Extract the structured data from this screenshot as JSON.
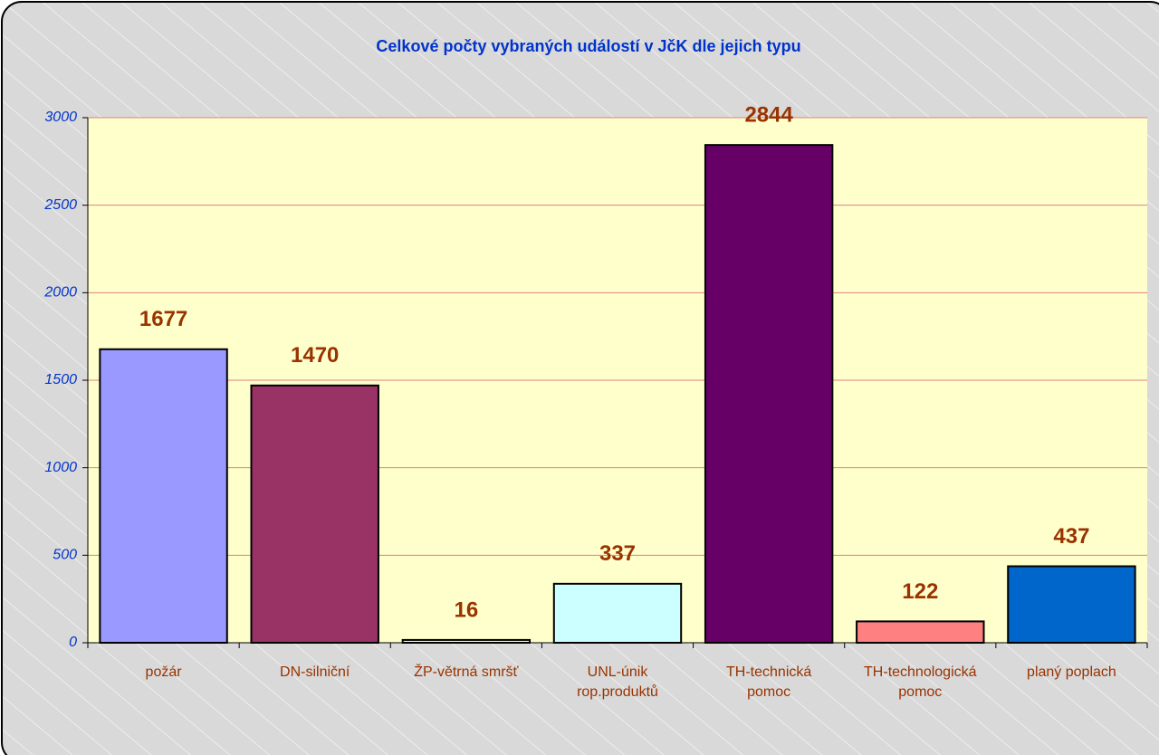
{
  "chart_data": {
    "type": "bar",
    "title": "Celkové počty vybraných událostí v JčK dle jejich typu",
    "categories": [
      "požár",
      "DN-silniční",
      "ŽP-větrná smršť",
      "UNL-únik rop.produktů",
      "TH-technická pomoc",
      "TH-technologická pomoc",
      "planý poplach"
    ],
    "values": [
      1677,
      1470,
      16,
      337,
      2844,
      122,
      437
    ],
    "colors": [
      "#9999ff",
      "#993366",
      "#ffffcc",
      "#ccffff",
      "#660066",
      "#ff8080",
      "#0066cc"
    ],
    "ylim": [
      0,
      3000
    ],
    "yticks": [
      0,
      500,
      1000,
      1500,
      2000,
      2500,
      3000
    ],
    "grid": true
  }
}
